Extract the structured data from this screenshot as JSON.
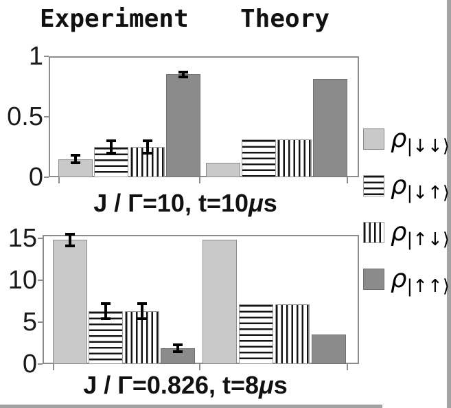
{
  "header": {
    "experiment": "Experiment",
    "theory": "Theory"
  },
  "colors": {
    "light_gray_bar": "#c9c9c9",
    "dark_gray_bar": "#8b8b8b",
    "hatch_line": "#141414",
    "frame_gray": "#8c8c8c",
    "error_bar": "#000000",
    "border_strip": "#a3a3a3"
  },
  "legend": {
    "items": [
      {
        "name": "rho-down-down",
        "rho": "ρ",
        "ket": "|↓↓⟩",
        "fill": "lightgray"
      },
      {
        "name": "rho-down-up",
        "rho": "ρ",
        "ket": "|↓↑⟩",
        "fill": "hlines"
      },
      {
        "name": "rho-up-down",
        "rho": "ρ",
        "ket": "|↑↓⟩",
        "fill": "vlines"
      },
      {
        "name": "rho-up-up",
        "rho": "ρ",
        "ket": "|↑↑⟩",
        "fill": "darkgray"
      }
    ]
  },
  "chart_data": [
    {
      "type": "bar",
      "title": {
        "pre": "J / Γ=10, t=10",
        "mu": "μ",
        "post": "s"
      },
      "groups": [
        "Experiment",
        "Theory"
      ],
      "categories": [
        "ρ|↓↓⟩",
        "ρ|↓↑⟩",
        "ρ|↑↓⟩",
        "ρ|↑↑⟩"
      ],
      "ylim": [
        0,
        1
      ],
      "yticks": [
        0,
        0.5,
        1
      ],
      "ytick_labels": [
        "0",
        "0.5",
        "1"
      ],
      "grid": false,
      "legend_position": "right",
      "series": [
        {
          "name": "Experiment",
          "values": [
            0.15,
            0.25,
            0.25,
            0.85
          ],
          "errors": [
            0.03,
            0.05,
            0.05,
            0.02
          ]
        },
        {
          "name": "Theory",
          "values": [
            0.12,
            0.31,
            0.31,
            0.81
          ],
          "errors": null
        }
      ]
    },
    {
      "type": "bar",
      "title": {
        "pre": "J / Γ=0.826, t=8",
        "mu": "μ",
        "post": "s"
      },
      "groups": [
        "Experiment",
        "Theory"
      ],
      "categories": [
        "ρ|↓↓⟩",
        "ρ|↓↑⟩",
        "ρ|↑↓⟩",
        "ρ|↑↑⟩"
      ],
      "ylim": [
        0,
        15.4
      ],
      "yticks": [
        0,
        5,
        10,
        15
      ],
      "ytick_labels": [
        "0",
        "5",
        "10",
        "15"
      ],
      "grid": false,
      "legend_position": "right",
      "series": [
        {
          "name": "Experiment",
          "values": [
            14.8,
            6.3,
            6.3,
            1.9
          ],
          "errors": [
            0.7,
            0.9,
            0.9,
            0.4
          ]
        },
        {
          "name": "Theory",
          "values": [
            14.8,
            7.1,
            7.1,
            3.5
          ],
          "errors": null
        }
      ]
    }
  ]
}
